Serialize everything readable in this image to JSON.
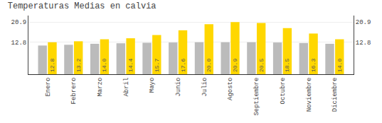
{
  "chart_data": {
    "type": "bar",
    "title": "Temperaturas Medias en calvia",
    "categories": [
      "Enero",
      "Febrero",
      "Marzo",
      "Abril",
      "Mayo",
      "Junio",
      "Julio",
      "Agosto",
      "Septiembre",
      "Octubre",
      "Noviembre",
      "Diciembre"
    ],
    "series": [
      {
        "color": "#BBBBBB",
        "values": [
          11.5,
          11.8,
          12.2,
          12.4,
          12.6,
          12.7,
          12.8,
          12.8,
          12.8,
          12.7,
          12.5,
          12.2
        ]
      },
      {
        "color": "#FFD700",
        "values": [
          12.8,
          13.2,
          14.0,
          14.4,
          15.7,
          17.6,
          20.0,
          20.9,
          20.5,
          18.5,
          16.3,
          14.0
        ],
        "value_labels": [
          "12.8",
          "13.2",
          "14.0",
          "14.4",
          "15.7",
          "17.6",
          "20.0",
          "20.9",
          "20.5",
          "18.5",
          "16.3",
          "14.0"
        ],
        "data_labels": true
      }
    ],
    "ylim": [
      0.0,
      23.5
    ],
    "yticks": [
      12.8,
      20.9
    ],
    "y2lim": [
      0.0,
      23.5
    ],
    "y2ticks": [
      12.8,
      20.9
    ],
    "grid": true
  }
}
